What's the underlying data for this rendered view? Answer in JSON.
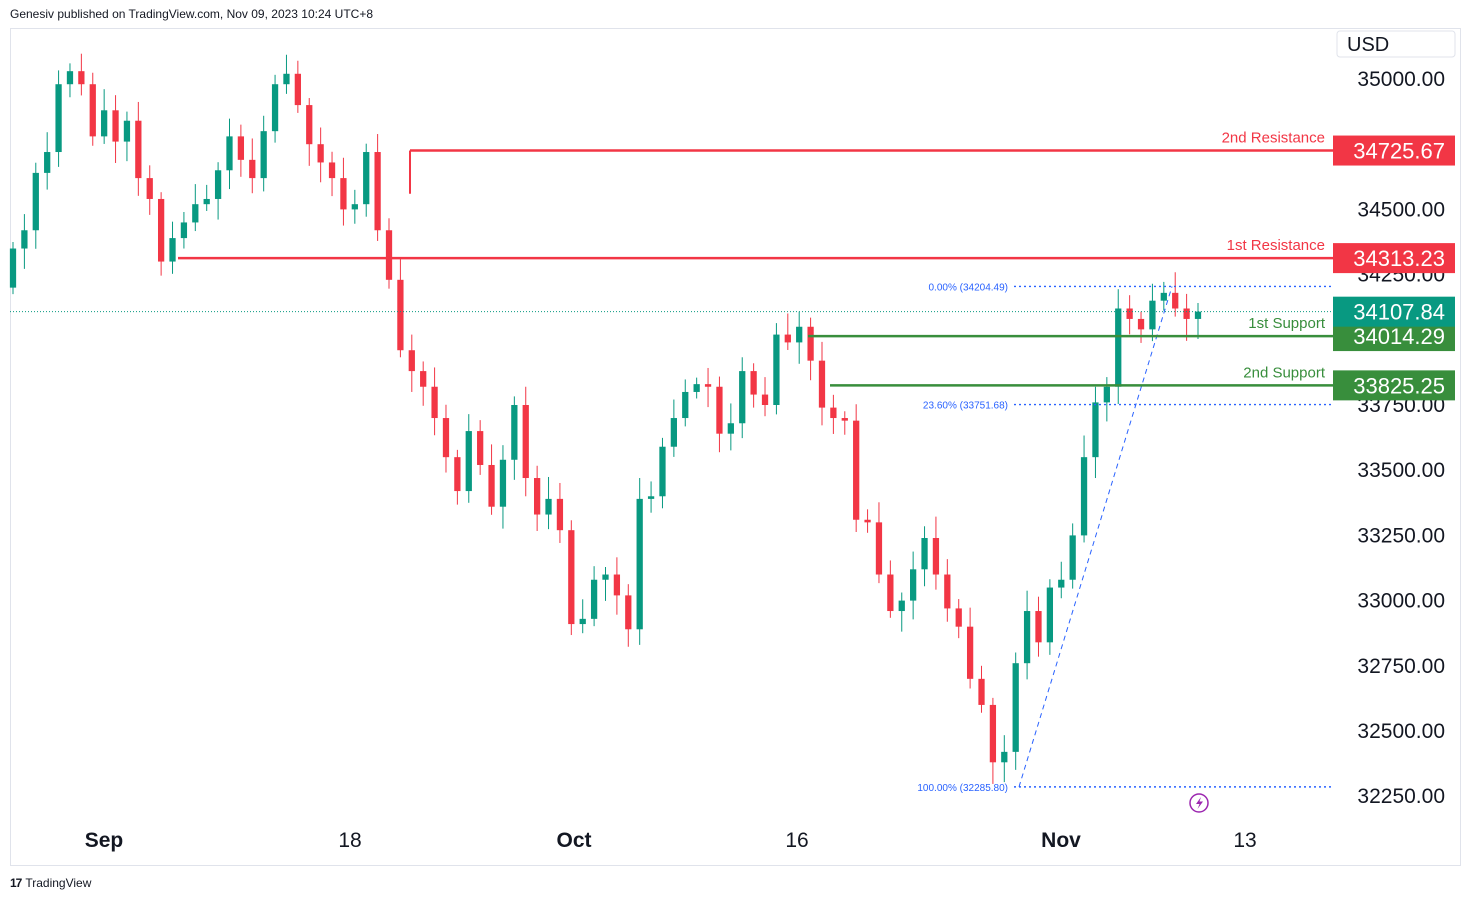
{
  "header": {
    "publisher": "Genesiv published on TradingView.com, Nov 09, 2023 10:24 UTC+8"
  },
  "footer": {
    "brand": "TradingView",
    "logo": "tradingview-logo-icon"
  },
  "colors": {
    "up": "#089981",
    "down": "#f23645",
    "resistance": "#f23645",
    "support": "#388e3c",
    "fib": "#2962ff",
    "current": "#089981"
  },
  "chart_data": {
    "type": "candlestick",
    "currency": "USD",
    "ylim": [
      32150,
      35200
    ],
    "y_ticks": [
      "35000.00",
      "34500.00",
      "33500.00",
      "33250.00",
      "33000.00",
      "32750.00",
      "32500.00",
      "32250.00"
    ],
    "x_ticks": [
      "Sep",
      "18",
      "Oct",
      "16",
      "Nov",
      "13"
    ],
    "levels": [
      {
        "name": "2nd Resistance",
        "value": 34725.67,
        "label": "34725.67",
        "kind": "resistance"
      },
      {
        "name": "1st Resistance",
        "value": 34313.23,
        "label": "34313.23",
        "kind": "resistance"
      },
      {
        "name": "1st Support",
        "value": 34014.29,
        "label": "34014.29",
        "kind": "support"
      },
      {
        "name": "2nd Support",
        "value": 33825.25,
        "label": "33825.25",
        "kind": "support"
      }
    ],
    "current_price": {
      "value": 34107.84,
      "label": "34107.84"
    },
    "fibonacci": [
      {
        "label": "0.00% (34204.49)",
        "value": 34204.49
      },
      {
        "label": "23.60% (33751.68)",
        "value": 33751.68
      },
      {
        "label": "100.00% (32285.80)",
        "value": 32285.8
      }
    ],
    "partially_hidden_ticks": [
      "34250.00",
      "33750.00"
    ],
    "series_anchor_closes": [
      34350,
      34420,
      34640,
      34720,
      34980,
      35030,
      34980,
      34780,
      34880,
      34760,
      34840,
      34620,
      34540,
      34300,
      34390,
      34450,
      34520,
      34540,
      34650,
      34780,
      34690,
      34620,
      34800,
      34980,
      35020,
      34900,
      34750,
      34680,
      34620,
      34500,
      34520,
      34720,
      34420,
      34230,
      33960,
      33880,
      33820,
      33700,
      33550,
      33420,
      33650,
      33520,
      33360,
      33540,
      33750,
      33470,
      33330,
      33390,
      33270,
      32910,
      32930,
      33080,
      33100,
      33020,
      32890,
      33390,
      33400,
      33590,
      33700,
      33800,
      33830,
      33820,
      33640,
      33680,
      33880,
      33790,
      33750,
      34020,
      33990,
      34050,
      33920,
      33740,
      33700,
      33690,
      33310,
      33300,
      33100,
      32960,
      33000,
      33120,
      33240,
      33100,
      32970,
      32900,
      32700,
      32600,
      32380,
      32420,
      32760,
      32960,
      32840,
      33050,
      33080,
      33250,
      33550,
      33760,
      33820,
      34120,
      34080,
      34040,
      34150,
      34180,
      34120,
      34080,
      34108
    ]
  }
}
